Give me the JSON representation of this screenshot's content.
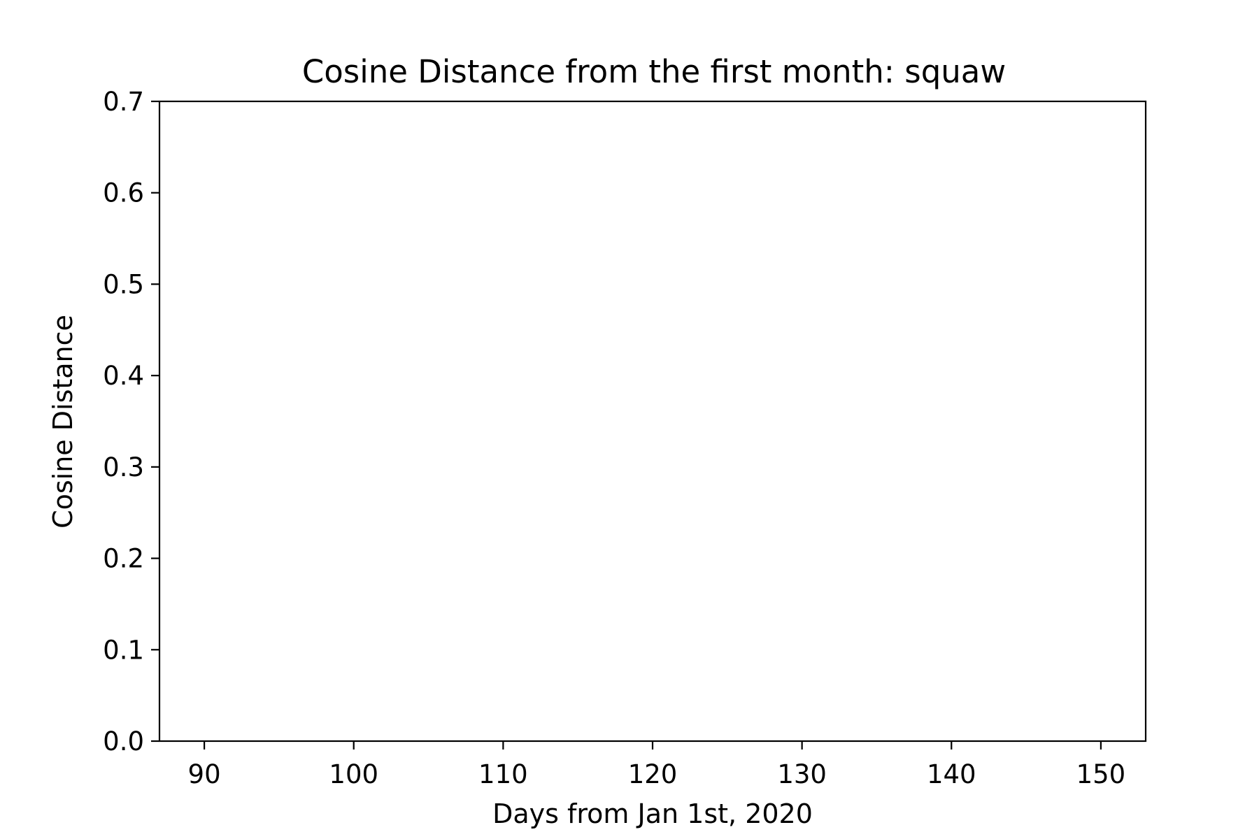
{
  "chart_data": {
    "type": "line",
    "title": "Cosine Distance from the first month: squaw",
    "xlabel": "Days from Jan 1st, 2020",
    "ylabel": "Cosine Distance",
    "xlim": [
      87,
      153
    ],
    "ylim": [
      0.0,
      0.7
    ],
    "x_ticks": [
      90,
      100,
      110,
      120,
      130,
      140,
      150
    ],
    "x_tick_labels": [
      "90",
      "100",
      "110",
      "120",
      "130",
      "140",
      "150"
    ],
    "y_ticks": [
      0.0,
      0.1,
      0.2,
      0.3,
      0.4,
      0.5,
      0.6,
      0.7
    ],
    "y_tick_labels": [
      "0.0",
      "0.1",
      "0.2",
      "0.3",
      "0.4",
      "0.5",
      "0.6",
      "0.7"
    ],
    "grid": false,
    "series": []
  },
  "colors": {
    "axis": "#000000",
    "background": "#ffffff"
  }
}
